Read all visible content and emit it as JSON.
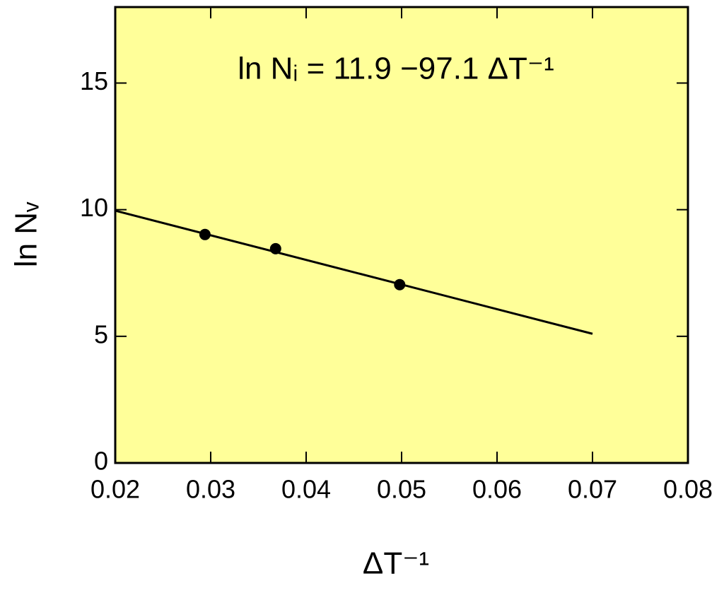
{
  "chart_data": {
    "type": "scatter",
    "annotation": "ln Nᵢ = 11.9 −97.1 ΔT⁻¹",
    "x_label": "ΔT⁻¹",
    "y_label": "ln Nᵥ",
    "series": [
      {
        "kind": "points",
        "color": "#000000",
        "x": [
          0.0294,
          0.0368,
          0.0498
        ],
        "values": [
          9.02,
          8.46,
          7.04
        ]
      },
      {
        "kind": "line",
        "color": "#000000",
        "x": [
          0.02,
          0.07
        ],
        "values": [
          9.96,
          5.1
        ]
      }
    ],
    "xlim": [
      0.02,
      0.08
    ],
    "xticks": [
      0.02,
      0.03,
      0.04,
      0.05,
      0.06,
      0.07,
      0.08
    ],
    "ylim": [
      0,
      18
    ],
    "yticks": [
      0,
      5,
      10,
      15
    ],
    "plot_background": "#ffff99",
    "grid": false
  }
}
